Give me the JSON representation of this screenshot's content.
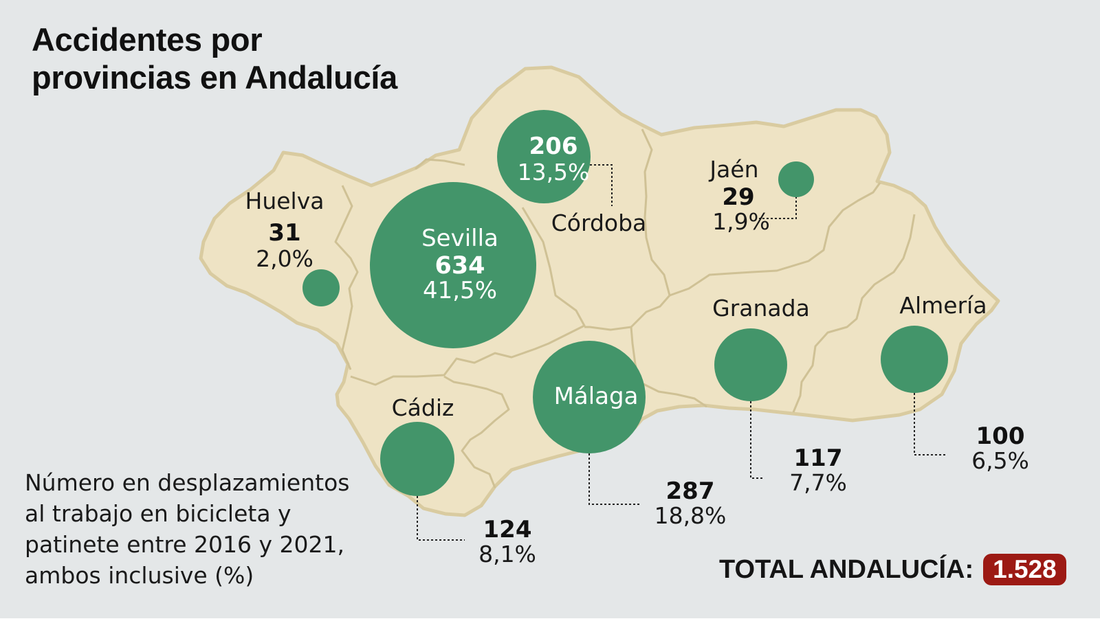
{
  "title": [
    "Accidentes por",
    "provincias en Andalucía"
  ],
  "note": [
    "Número en desplazamientos",
    "al trabajo en bicicleta y",
    "patinete entre 2016 y 2021,",
    "ambos inclusive (%)"
  ],
  "total": {
    "label": "TOTAL ANDALUCÍA:",
    "value": "1.528"
  },
  "colors": {
    "background": "#e4e7e8",
    "land": "#eee3c4",
    "border": "#cfc195",
    "bubble": "#43956a",
    "badge": "#9c1a14"
  },
  "provinces": [
    {
      "id": "huelva",
      "name": "Huelva",
      "count": "31",
      "pct": "2,0%"
    },
    {
      "id": "sevilla",
      "name": "Sevilla",
      "count": "634",
      "pct": "41,5%"
    },
    {
      "id": "cordoba",
      "name": "Córdoba",
      "count": "206",
      "pct": "13,5%"
    },
    {
      "id": "jaen",
      "name": "Jaén",
      "count": "29",
      "pct": "1,9%"
    },
    {
      "id": "cadiz",
      "name": "Cádiz",
      "count": "124",
      "pct": "8,1%"
    },
    {
      "id": "malaga",
      "name": "Málaga",
      "count": "287",
      "pct": "18,8%"
    },
    {
      "id": "granada",
      "name": "Granada",
      "count": "117",
      "pct": "7,7%"
    },
    {
      "id": "almeria",
      "name": "Almería",
      "count": "100",
      "pct": "6,5%"
    }
  ]
}
